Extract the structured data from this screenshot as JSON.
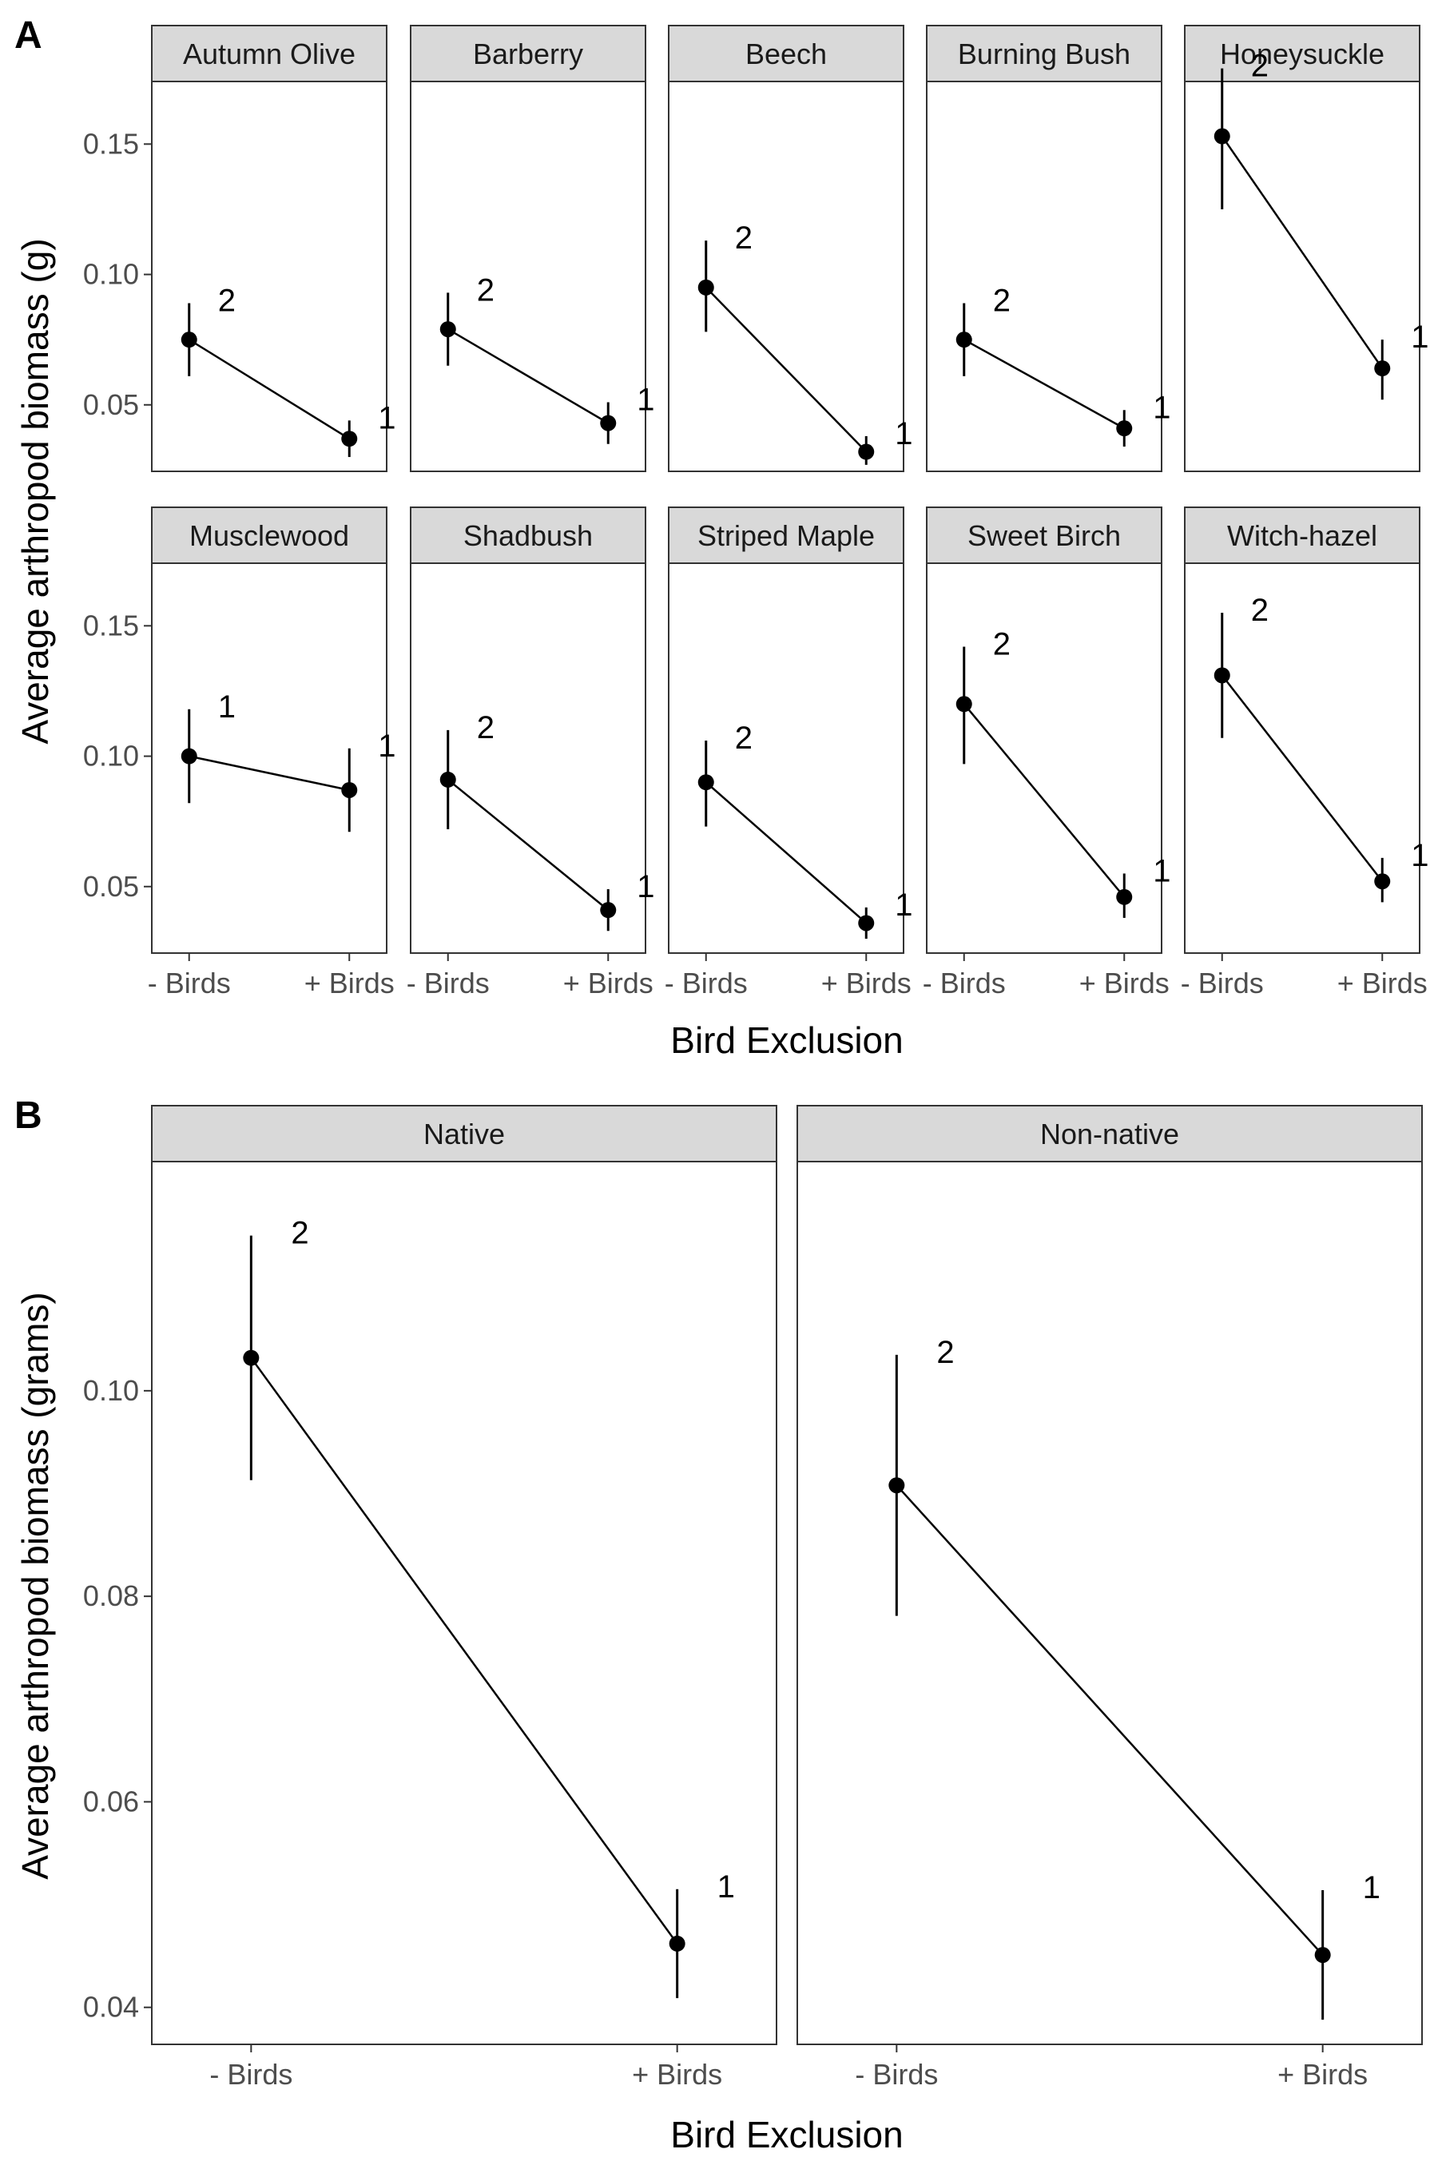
{
  "chart_data": [
    {
      "type": "line",
      "panel_tag": "A",
      "xlabel": "Bird Exclusion",
      "ylabel": "Average arthropod biomass (g)",
      "categories": [
        "- Birds",
        "+ Birds"
      ],
      "y_ticks": [
        "0.05",
        "0.10",
        "0.15"
      ],
      "y_tick_values": [
        0.05,
        0.1,
        0.15
      ],
      "ylim": [
        0.0245,
        0.174
      ],
      "error_bars": true,
      "grid": false,
      "facets": [
        {
          "name": "Autumn Olive",
          "values": [
            0.075,
            0.037
          ],
          "lower": [
            0.061,
            0.03
          ],
          "upper": [
            0.089,
            0.044
          ],
          "labels": [
            "2",
            "1"
          ]
        },
        {
          "name": "Barberry",
          "values": [
            0.079,
            0.043
          ],
          "lower": [
            0.065,
            0.035
          ],
          "upper": [
            0.093,
            0.051
          ],
          "labels": [
            "2",
            "1"
          ]
        },
        {
          "name": "Beech",
          "values": [
            0.095,
            0.032
          ],
          "lower": [
            0.078,
            0.027
          ],
          "upper": [
            0.113,
            0.038
          ],
          "labels": [
            "2",
            "1"
          ]
        },
        {
          "name": "Burning Bush",
          "values": [
            0.075,
            0.041
          ],
          "lower": [
            0.061,
            0.034
          ],
          "upper": [
            0.089,
            0.048
          ],
          "labels": [
            "2",
            "1"
          ]
        },
        {
          "name": "Honeysuckle",
          "values": [
            0.153,
            0.064
          ],
          "lower": [
            0.125,
            0.052
          ],
          "upper": [
            0.179,
            0.075
          ],
          "labels": [
            "2",
            "1"
          ]
        },
        {
          "name": "Musclewood",
          "values": [
            0.1,
            0.087
          ],
          "lower": [
            0.082,
            0.071
          ],
          "upper": [
            0.118,
            0.103
          ],
          "labels": [
            "1",
            "1"
          ]
        },
        {
          "name": "Shadbush",
          "values": [
            0.091,
            0.041
          ],
          "lower": [
            0.072,
            0.033
          ],
          "upper": [
            0.11,
            0.049
          ],
          "labels": [
            "2",
            "1"
          ]
        },
        {
          "name": "Striped Maple",
          "values": [
            0.09,
            0.036
          ],
          "lower": [
            0.073,
            0.03
          ],
          "upper": [
            0.106,
            0.042
          ],
          "labels": [
            "2",
            "1"
          ]
        },
        {
          "name": "Sweet Birch",
          "values": [
            0.12,
            0.046
          ],
          "lower": [
            0.097,
            0.038
          ],
          "upper": [
            0.142,
            0.055
          ],
          "labels": [
            "2",
            "1"
          ]
        },
        {
          "name": "Witch-hazel",
          "values": [
            0.131,
            0.052
          ],
          "lower": [
            0.107,
            0.044
          ],
          "upper": [
            0.155,
            0.061
          ],
          "labels": [
            "2",
            "1"
          ]
        }
      ]
    },
    {
      "type": "line",
      "panel_tag": "B",
      "xlabel": "Bird Exclusion",
      "ylabel": "Average arthropod biomass (grams)",
      "categories": [
        "- Birds",
        "+ Birds"
      ],
      "y_ticks": [
        "0.04",
        "0.06",
        "0.08",
        "0.10"
      ],
      "y_tick_values": [
        0.04,
        0.06,
        0.08,
        0.1
      ],
      "ylim": [
        0.0364,
        0.1223
      ],
      "error_bars": true,
      "grid": false,
      "facets": [
        {
          "name": "Native",
          "values": [
            0.1032,
            0.0462
          ],
          "lower": [
            0.0913,
            0.0409
          ],
          "upper": [
            0.1151,
            0.0515
          ],
          "labels": [
            "2",
            "1"
          ]
        },
        {
          "name": "Non-native",
          "values": [
            0.0908,
            0.0451
          ],
          "lower": [
            0.0781,
            0.0388
          ],
          "upper": [
            0.1035,
            0.0514
          ],
          "labels": [
            "2",
            "1"
          ]
        }
      ]
    }
  ]
}
